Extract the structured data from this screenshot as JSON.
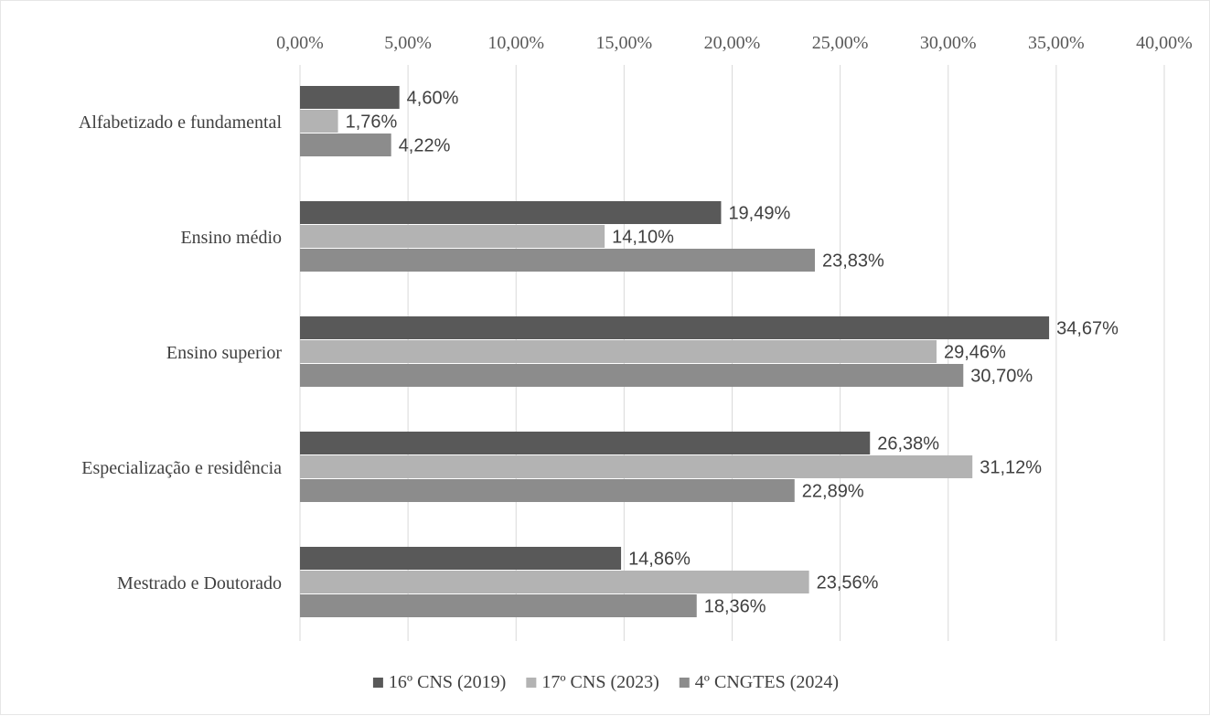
{
  "chart_data": {
    "type": "bar",
    "orientation": "horizontal",
    "categories": [
      "Alfabetizado e fundamental",
      "Ensino médio ",
      "Ensino superior",
      "Especialização e residência",
      "Mestrado e Doutorado"
    ],
    "series": [
      {
        "name": "16º CNS (2019)",
        "color": "#595959",
        "values": [
          4.6,
          19.49,
          34.67,
          26.38,
          14.86
        ],
        "labels": [
          "4,60%",
          "19,49%",
          "34,67%",
          "26,38%",
          "14,86%"
        ]
      },
      {
        "name": "17º CNS (2023)",
        "color": "#b3b3b3",
        "values": [
          1.76,
          14.1,
          29.46,
          31.12,
          23.56
        ],
        "labels": [
          "1,76%",
          "14,10%",
          "29,46%",
          "31,12%",
          "23,56%"
        ]
      },
      {
        "name": "4º CNGTES (2024)",
        "color": "#8c8c8c",
        "values": [
          4.22,
          23.83,
          30.7,
          22.89,
          18.36
        ],
        "labels": [
          "4,22%",
          "23,83%",
          "30,70%",
          "22,89%",
          "18,36%"
        ]
      }
    ],
    "xlim": [
      0,
      40
    ],
    "ticks": [
      0,
      5,
      10,
      15,
      20,
      25,
      30,
      35,
      40
    ],
    "tick_labels": [
      "0,00%",
      "5,00%",
      "10,00%",
      "15,00%",
      "20,00%",
      "25,00%",
      "30,00%",
      "35,00%",
      "40,00%"
    ],
    "axis_position": "top",
    "grid": true,
    "grid_color": "#d9d9d9",
    "legend_position": "bottom"
  }
}
